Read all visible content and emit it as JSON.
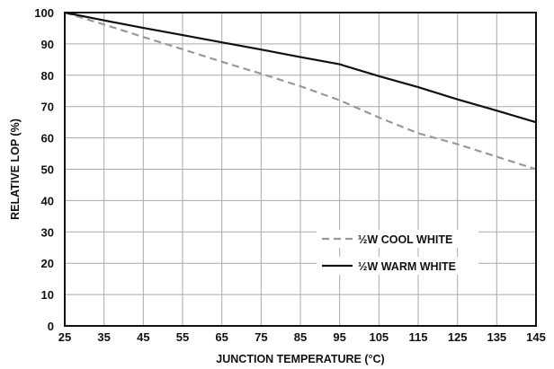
{
  "chart_data": {
    "type": "line",
    "title": "",
    "xlabel": "JUNCTION TEMPERATURE (°C)",
    "ylabel": "RELATIVE LOP (%)",
    "xlim": [
      25,
      145
    ],
    "ylim": [
      0,
      100
    ],
    "xticks": [
      25,
      35,
      45,
      55,
      65,
      75,
      85,
      95,
      105,
      115,
      125,
      135,
      145
    ],
    "yticks": [
      0,
      10,
      20,
      30,
      40,
      50,
      60,
      70,
      80,
      90,
      100
    ],
    "grid": true,
    "legend_position": "lower-right",
    "series": [
      {
        "name": "½W COOL WHITE",
        "style": "dashed",
        "color": "#999999",
        "x": [
          25,
          35,
          45,
          55,
          65,
          75,
          85,
          95,
          105,
          115,
          125,
          135,
          145
        ],
        "y": [
          100,
          96.2,
          92.2,
          88.3,
          84.3,
          80.5,
          76.5,
          72,
          66.5,
          61.5,
          58,
          54,
          50
        ]
      },
      {
        "name": "½W WARM WHITE",
        "style": "solid",
        "color": "#111111",
        "x": [
          25,
          35,
          45,
          55,
          65,
          75,
          85,
          95,
          105,
          115,
          125,
          135,
          145
        ],
        "y": [
          100,
          97.5,
          95.1,
          92.8,
          90.5,
          88.2,
          85.8,
          83.5,
          79.7,
          76.2,
          72.3,
          68.7,
          65
        ]
      }
    ]
  }
}
